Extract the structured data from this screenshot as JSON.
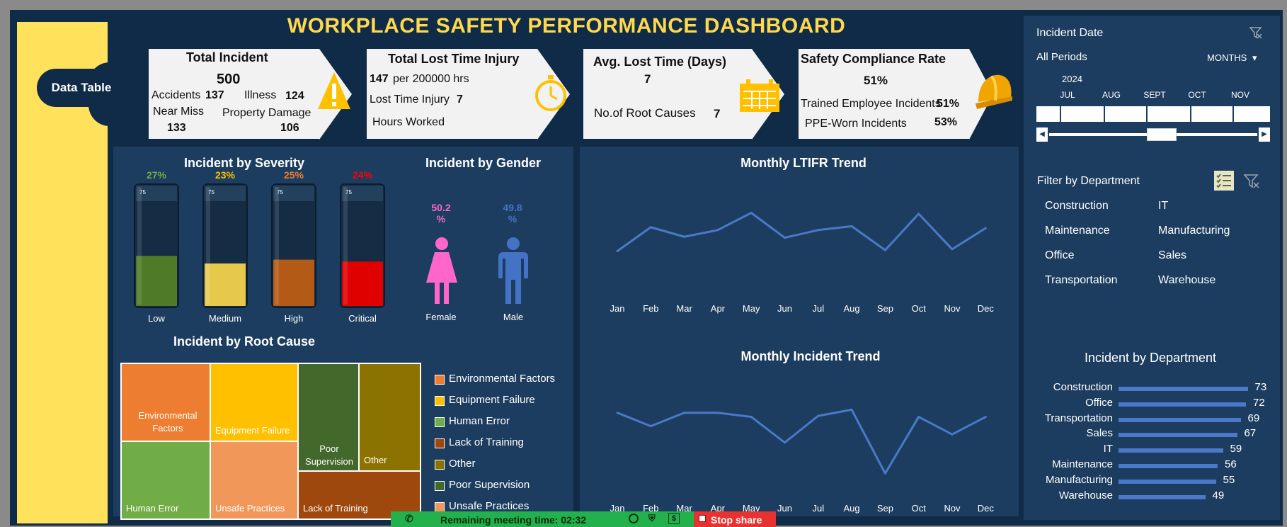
{
  "dashboard": {
    "title": "WORKPLACE SAFETY PERFORMANCE DASHBOARD",
    "data_table_button": "Data Table"
  },
  "kpis": {
    "total_incident": {
      "title": "Total Incident",
      "value": "500",
      "accidents_label": "Accidents",
      "accidents_value": "137",
      "illness_label": "Illness",
      "illness_value": "124",
      "near_miss_label": "Near Miss",
      "near_miss_value": "133",
      "property_label": "Property Damage",
      "property_value": "106",
      "icon": "warning-icon"
    },
    "lost_time_injury": {
      "title": "Total Lost Time Injury",
      "rate_value": "147",
      "rate_label": "per 200000 hrs",
      "lti_label": "Lost Time Injury",
      "lti_value": "7",
      "hours_label": "Hours Worked",
      "icon": "stopwatch-icon"
    },
    "avg_lost_time": {
      "title": "Avg. Lost Time (Days)",
      "value": "7",
      "root_causes_label": "No.of Root Causes",
      "root_causes_value": "7",
      "icon": "calendar-icon"
    },
    "compliance": {
      "title": "Safety Compliance Rate",
      "value": "51%",
      "trained_label": "Trained Employee Incidents",
      "trained_value": "51%",
      "ppe_label": "PPE-Worn  Incidents",
      "ppe_value": "53%",
      "icon": "hardhat-icon"
    }
  },
  "severity": {
    "title": "Incident by Severity",
    "tube_scale_label": "75",
    "items": [
      {
        "label": "Low",
        "pct_text": "27%",
        "pct": 27,
        "color": "#4f7a28",
        "text_color": "#70ad47"
      },
      {
        "label": "Medium",
        "pct_text": "23%",
        "pct": 23,
        "color": "#e6c84a",
        "text_color": "#ffc000"
      },
      {
        "label": "High",
        "pct_text": "25%",
        "pct": 25,
        "color": "#b35a16",
        "text_color": "#ed7d31"
      },
      {
        "label": "Critical",
        "pct_text": "24%",
        "pct": 24,
        "color": "#e00000",
        "text_color": "#ff0000"
      }
    ]
  },
  "gender": {
    "title": "Incident by Gender",
    "female_pct_line1": "50.2",
    "female_pct_line2": "%",
    "female_label": "Female",
    "female_color": "#ff66cc",
    "male_pct_line1": "49.8",
    "male_pct_line2": "%",
    "male_label": "Male",
    "male_color": "#4472c4"
  },
  "root_cause": {
    "title": "Incident by Root Cause",
    "tiles": [
      {
        "label_line1": "Environmental",
        "label_line2": "Factors",
        "color": "#ed7d31"
      },
      {
        "label_line1": "Equipment Failure",
        "label_line2": "",
        "color": "#ffc000"
      },
      {
        "label_line1": "Poor",
        "label_line2": "Supervision",
        "color": "#43682b"
      },
      {
        "label_line1": "Other",
        "label_line2": "",
        "color": "#8c7200"
      },
      {
        "label_line1": "Human Error",
        "label_line2": "",
        "color": "#70ad47"
      },
      {
        "label_line1": "Unsafe Practices",
        "label_line2": "",
        "color": "#f1975a"
      },
      {
        "label_line1": "Lack of Training",
        "label_line2": "",
        "color": "#9e480e"
      }
    ],
    "legend": [
      {
        "label": "Environmental Factors",
        "color": "#ed7d31"
      },
      {
        "label": "Equipment Failure",
        "color": "#ffc000"
      },
      {
        "label": "Human Error",
        "color": "#70ad47"
      },
      {
        "label": "Lack of Training",
        "color": "#9e480e"
      },
      {
        "label": "Other",
        "color": "#8c7200"
      },
      {
        "label": "Poor Supervision",
        "color": "#43682b"
      },
      {
        "label": "Unsafe Practices",
        "color": "#f1975a"
      }
    ]
  },
  "chart_data": [
    {
      "type": "line",
      "title": "Monthly LTIFR Trend",
      "categories": [
        "Jan",
        "Feb",
        "Mar",
        "Apr",
        "May",
        "Jun",
        "Jul",
        "Aug",
        "Sep",
        "Oct",
        "Nov",
        "Dec"
      ],
      "series": [
        {
          "values": [
            0.3,
            0.55,
            0.45,
            0.52,
            0.7,
            0.44,
            0.52,
            0.56,
            0.31,
            0.69,
            0.32,
            0.54
          ],
          "color": "#4a79c9"
        }
      ],
      "ylim": [
        0,
        1
      ]
    },
    {
      "type": "line",
      "title": "Monthly Incident Trend",
      "categories": [
        "Jan",
        "Feb",
        "Mar",
        "Apr",
        "May",
        "Jun",
        "Jul",
        "Aug",
        "Sep",
        "Oct",
        "Nov",
        "Dec"
      ],
      "series": [
        {
          "values": [
            0.65,
            0.52,
            0.65,
            0.65,
            0.61,
            0.36,
            0.62,
            0.68,
            0.06,
            0.61,
            0.44,
            0.61
          ],
          "color": "#4a79c9"
        }
      ],
      "ylim": [
        0,
        1
      ]
    },
    {
      "type": "bar",
      "title": "Incident by Department",
      "categories": [
        "Construction",
        "Office",
        "Transportation",
        "Sales",
        "IT",
        "Maintenance",
        "Manufacturing",
        "Warehouse"
      ],
      "values": [
        73,
        72,
        69,
        67,
        59,
        56,
        55,
        49
      ],
      "bar_color": "#4a79c9"
    }
  ],
  "slicer_date": {
    "title": "Incident Date",
    "period_label": "All Periods",
    "unit_label": "MONTHS",
    "year": "2024",
    "months": [
      "JUL",
      "AUG",
      "SEPT",
      "OCT",
      "NOV"
    ]
  },
  "slicer_department": {
    "title": "Filter by Department",
    "items": [
      "Construction",
      "IT",
      "Maintenance",
      "Manufacturing",
      "Office",
      "Sales",
      "Transportation",
      "Warehouse"
    ]
  },
  "meeting_bar": {
    "remaining_text": "Remaining meeting time: 02:32",
    "stop_label": "Stop share"
  }
}
